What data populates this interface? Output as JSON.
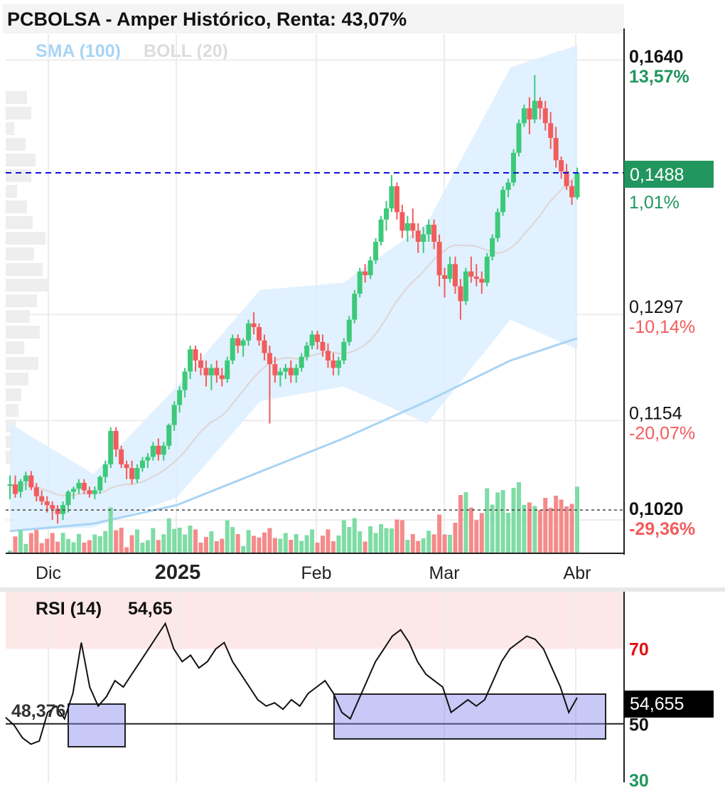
{
  "title": "PCBOLSA - Amper Histórico, Renta: 43,07%",
  "indicators": {
    "sma": "SMA (100)",
    "boll": "BOLL (20)"
  },
  "colors": {
    "up": "#3dc97a",
    "down": "#f25c5c",
    "up_vol": "#7fdca5",
    "down_vol": "#f58a8a",
    "boll_fill": "#dcefff",
    "sma": "#a8d4f5",
    "boll_mid": "#e0d4d4",
    "price_badge": "#22965e",
    "pct_up": "#22965e",
    "pct_down": "#f25c5c",
    "rsi_overbought": "#fde8e8",
    "rsi_box": "#8888ee",
    "dashed_line": "#1010dd"
  },
  "price_axis": {
    "ticks": [
      {
        "value": 0.164,
        "label": "0,1640",
        "pct": "13,57%",
        "dir": "up"
      },
      {
        "value": 0.1297,
        "label": "0,1297",
        "pct": "-10,14%",
        "dir": "down"
      },
      {
        "value": 0.1154,
        "label": "0,1154",
        "pct": "-20,07%",
        "dir": "down"
      },
      {
        "value": 0.102,
        "label": "0,1020",
        "pct": "-29,36%",
        "dir": "down"
      }
    ],
    "current": {
      "value": 0.1488,
      "label": "0,1488",
      "pct": "1,01%"
    }
  },
  "time_axis": [
    "Dic",
    "2025",
    "Feb",
    "Mar",
    "Abr"
  ],
  "rsi": {
    "label": "RSI (14)",
    "value": "54,65",
    "badge": "54,655",
    "level_70": "70",
    "level_50": "50",
    "level_30": "30",
    "marker_label": "48,376"
  },
  "chart_data": {
    "type": "candlestick",
    "title": "PCBOLSA - Amper Histórico, Renta: 43,07%",
    "x_labels": [
      "Dic",
      "2025",
      "Feb",
      "Mar",
      "Abr"
    ],
    "y_ticks": [
      0.164,
      0.1297,
      0.1154,
      0.102
    ],
    "last_close": 0.1488,
    "last_change_pct": 1.01,
    "series": [
      {
        "name": "SMA (100)",
        "points": [
          [
            0,
            0.1005
          ],
          [
            20,
            0.1015
          ],
          [
            40,
            0.104
          ],
          [
            60,
            0.1085
          ],
          [
            80,
            0.113
          ],
          [
            100,
            0.118
          ],
          [
            120,
            0.1235
          ],
          [
            136,
            0.1265
          ]
        ]
      },
      {
        "name": "BOLL (20)",
        "upper": [
          [
            0,
            0.115
          ],
          [
            20,
            0.1082
          ],
          [
            40,
            0.12
          ],
          [
            60,
            0.133
          ],
          [
            80,
            0.134
          ],
          [
            100,
            0.142
          ],
          [
            120,
            0.163
          ],
          [
            136,
            0.166
          ]
        ],
        "lower": [
          [
            0,
            0.1005
          ],
          [
            20,
            0.101
          ],
          [
            40,
            0.105
          ],
          [
            60,
            0.118
          ],
          [
            80,
            0.12
          ],
          [
            100,
            0.115
          ],
          [
            120,
            0.129
          ],
          [
            136,
            0.125
          ]
        ]
      }
    ],
    "ohlc": [
      [
        0.1068,
        0.108,
        0.1048,
        0.1068
      ],
      [
        0.1068,
        0.108,
        0.105,
        0.1055
      ],
      [
        0.1058,
        0.1075,
        0.105,
        0.1072
      ],
      [
        0.1072,
        0.1085,
        0.106,
        0.108
      ],
      [
        0.108,
        0.1086,
        0.106,
        0.1064
      ],
      [
        0.1064,
        0.107,
        0.1045,
        0.1052
      ],
      [
        0.1052,
        0.106,
        0.104,
        0.1045
      ],
      [
        0.1045,
        0.1052,
        0.103,
        0.104
      ],
      [
        0.104,
        0.1045,
        0.102,
        0.1035
      ],
      [
        0.1035,
        0.104,
        0.1015,
        0.1028
      ],
      [
        0.1028,
        0.1045,
        0.102,
        0.104
      ],
      [
        0.104,
        0.106,
        0.103,
        0.1058
      ],
      [
        0.1058,
        0.1065,
        0.1048,
        0.1062
      ],
      [
        0.1062,
        0.1075,
        0.1055,
        0.107
      ],
      [
        0.107,
        0.1075,
        0.1055,
        0.106
      ],
      [
        0.106,
        0.1065,
        0.105,
        0.1055
      ],
      [
        0.1055,
        0.1065,
        0.1048,
        0.106
      ],
      [
        0.106,
        0.108,
        0.1055,
        0.1078
      ],
      [
        0.1078,
        0.11,
        0.107,
        0.1095
      ],
      [
        0.1095,
        0.1145,
        0.109,
        0.114
      ],
      [
        0.114,
        0.1145,
        0.1105,
        0.1115
      ],
      [
        0.1115,
        0.112,
        0.109,
        0.1095
      ],
      [
        0.1095,
        0.11,
        0.1075,
        0.109
      ],
      [
        0.109,
        0.11,
        0.1068,
        0.1075
      ],
      [
        0.1075,
        0.1095,
        0.107,
        0.109
      ],
      [
        0.109,
        0.1105,
        0.1085,
        0.11
      ],
      [
        0.11,
        0.111,
        0.109,
        0.1105
      ],
      [
        0.1105,
        0.1125,
        0.11,
        0.112
      ],
      [
        0.112,
        0.113,
        0.11,
        0.1108
      ],
      [
        0.1108,
        0.1125,
        0.11,
        0.112
      ],
      [
        0.112,
        0.115,
        0.1115,
        0.1148
      ],
      [
        0.1148,
        0.118,
        0.114,
        0.1175
      ],
      [
        0.1175,
        0.12,
        0.1165,
        0.1195
      ],
      [
        0.1195,
        0.1225,
        0.1185,
        0.122
      ],
      [
        0.122,
        0.1255,
        0.121,
        0.125
      ],
      [
        0.125,
        0.1255,
        0.122,
        0.1235
      ],
      [
        0.1235,
        0.1245,
        0.1215,
        0.1225
      ],
      [
        0.1225,
        0.1235,
        0.12,
        0.1215
      ],
      [
        0.1215,
        0.123,
        0.1195,
        0.1225
      ],
      [
        0.1225,
        0.1235,
        0.1205,
        0.1215
      ],
      [
        0.1215,
        0.1225,
        0.12,
        0.121
      ],
      [
        0.121,
        0.124,
        0.1205,
        0.1235
      ],
      [
        0.1235,
        0.127,
        0.123,
        0.1265
      ],
      [
        0.1265,
        0.127,
        0.1245,
        0.1255
      ],
      [
        0.1255,
        0.1265,
        0.124,
        0.1262
      ],
      [
        0.1262,
        0.129,
        0.1255,
        0.1285
      ],
      [
        0.1285,
        0.13,
        0.127,
        0.128
      ],
      [
        0.128,
        0.1285,
        0.1255,
        0.1262
      ],
      [
        0.1262,
        0.127,
        0.1235,
        0.1245
      ],
      [
        0.1245,
        0.1255,
        0.115,
        0.123
      ],
      [
        0.123,
        0.124,
        0.1205,
        0.1215
      ],
      [
        0.1215,
        0.1225,
        0.12,
        0.122
      ],
      [
        0.122,
        0.123,
        0.121,
        0.1225
      ],
      [
        0.1225,
        0.1235,
        0.1205,
        0.1215
      ],
      [
        0.1215,
        0.123,
        0.1205,
        0.1225
      ],
      [
        0.1225,
        0.1245,
        0.122,
        0.124
      ],
      [
        0.124,
        0.126,
        0.1235,
        0.1255
      ],
      [
        0.1255,
        0.1275,
        0.125,
        0.127
      ],
      [
        0.127,
        0.1275,
        0.125,
        0.126
      ],
      [
        0.126,
        0.127,
        0.124,
        0.1248
      ],
      [
        0.1248,
        0.1258,
        0.1225,
        0.1235
      ],
      [
        0.1235,
        0.1245,
        0.1215,
        0.1225
      ],
      [
        0.1225,
        0.124,
        0.1215,
        0.1235
      ],
      [
        0.1235,
        0.1265,
        0.123,
        0.126
      ],
      [
        0.126,
        0.1295,
        0.1255,
        0.129
      ],
      [
        0.129,
        0.133,
        0.1285,
        0.1325
      ],
      [
        0.1325,
        0.136,
        0.132,
        0.1355
      ],
      [
        0.1355,
        0.1365,
        0.134,
        0.135
      ],
      [
        0.135,
        0.1375,
        0.1345,
        0.137
      ],
      [
        0.137,
        0.14,
        0.1365,
        0.1395
      ],
      [
        0.1395,
        0.143,
        0.139,
        0.1425
      ],
      [
        0.1425,
        0.145,
        0.141,
        0.144
      ],
      [
        0.144,
        0.1485,
        0.1435,
        0.147
      ],
      [
        0.147,
        0.1475,
        0.1425,
        0.1435
      ],
      [
        0.1435,
        0.1445,
        0.14,
        0.141
      ],
      [
        0.141,
        0.143,
        0.1395,
        0.142
      ],
      [
        0.142,
        0.144,
        0.14,
        0.141
      ],
      [
        0.141,
        0.142,
        0.138,
        0.1395
      ],
      [
        0.1395,
        0.1415,
        0.138,
        0.1405
      ],
      [
        0.1405,
        0.1425,
        0.1395,
        0.1418
      ],
      [
        0.1418,
        0.1425,
        0.1385,
        0.1395
      ],
      [
        0.1395,
        0.1405,
        0.1335,
        0.135
      ],
      [
        0.135,
        0.136,
        0.132,
        0.1345
      ],
      [
        0.1345,
        0.1375,
        0.134,
        0.1365
      ],
      [
        0.1365,
        0.1375,
        0.1325,
        0.1335
      ],
      [
        0.1335,
        0.1345,
        0.129,
        0.1315
      ],
      [
        0.1315,
        0.136,
        0.131,
        0.1355
      ],
      [
        0.1355,
        0.1375,
        0.134,
        0.1348
      ],
      [
        0.1348,
        0.1365,
        0.1335,
        0.1345
      ],
      [
        0.1345,
        0.1355,
        0.1325,
        0.134
      ],
      [
        0.134,
        0.138,
        0.1335,
        0.1375
      ],
      [
        0.1375,
        0.1405,
        0.137,
        0.14
      ],
      [
        0.14,
        0.144,
        0.1395,
        0.1435
      ],
      [
        0.1435,
        0.147,
        0.143,
        0.1465
      ],
      [
        0.1465,
        0.148,
        0.1455,
        0.1475
      ],
      [
        0.1475,
        0.152,
        0.147,
        0.1515
      ],
      [
        0.1515,
        0.156,
        0.151,
        0.1555
      ],
      [
        0.1555,
        0.158,
        0.155,
        0.1575
      ],
      [
        0.1575,
        0.159,
        0.154,
        0.156
      ],
      [
        0.156,
        0.162,
        0.1555,
        0.1585
      ],
      [
        0.1585,
        0.159,
        0.156,
        0.1575
      ],
      [
        0.1575,
        0.1585,
        0.1545,
        0.1555
      ],
      [
        0.1555,
        0.157,
        0.152,
        0.1535
      ],
      [
        0.1535,
        0.155,
        0.1495,
        0.1505
      ],
      [
        0.1505,
        0.151,
        0.148,
        0.149
      ],
      [
        0.149,
        0.15,
        0.1465,
        0.147
      ],
      [
        0.147,
        0.1478,
        0.1445,
        0.1455
      ],
      [
        0.1455,
        0.1495,
        0.1452,
        0.1488
      ]
    ],
    "rsi_points": [
      48.4,
      46,
      42,
      40,
      41,
      50,
      52,
      48,
      56,
      72,
      58,
      52,
      55,
      60,
      58,
      62,
      66,
      70,
      74,
      78,
      70,
      66,
      68,
      64,
      66,
      70,
      72,
      66,
      62,
      58,
      54,
      52,
      53,
      51,
      54,
      52,
      56,
      58,
      60,
      56,
      50,
      48,
      54,
      60,
      66,
      70,
      74,
      76,
      72,
      66,
      62,
      60,
      58,
      50,
      52,
      54,
      52,
      54,
      60,
      66,
      70,
      72,
      74,
      73,
      70,
      64,
      58,
      50,
      54.65
    ],
    "rsi_levels": [
      70,
      50,
      30
    ]
  }
}
